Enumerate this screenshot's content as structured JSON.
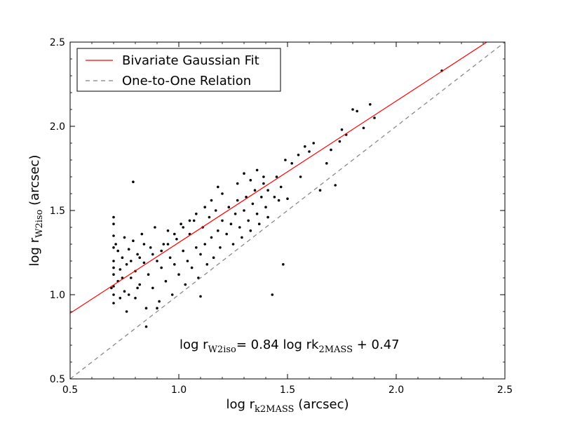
{
  "chart_data": {
    "type": "scatter",
    "xlabel": {
      "prefix": "log r",
      "sub": "k2MASS",
      "suffix": " (arcsec)"
    },
    "ylabel": {
      "prefix": "log r",
      "sub": "W2iso",
      "suffix": " (arcsec)"
    },
    "xlim": [
      0.5,
      2.5
    ],
    "ylim": [
      0.5,
      2.5
    ],
    "xticks": [
      0.5,
      1.0,
      1.5,
      2.0,
      2.5
    ],
    "yticks": [
      0.5,
      1.0,
      1.5,
      2.0,
      2.5
    ],
    "xtick_labels": [
      "0.5",
      "1.0",
      "1.5",
      "2.0",
      "2.5"
    ],
    "ytick_labels": [
      "0.5",
      "1.0",
      "1.5",
      "2.0",
      "2.5"
    ],
    "grid": false,
    "legend_position": "top-left",
    "series": [
      {
        "name": "Bivariate Gaussian Fit",
        "kind": "line",
        "color": "#ff0000",
        "style": "solid",
        "slope": 0.84,
        "intercept": 0.47
      },
      {
        "name": "One-to-One Relation",
        "kind": "line",
        "color": "#808080",
        "style": "dashed",
        "slope": 1.0,
        "intercept": 0.0
      }
    ],
    "scatter": {
      "color": "#000000",
      "points": [
        [
          0.7,
          0.95
        ],
        [
          0.7,
          1.05
        ],
        [
          0.7,
          1.12
        ],
        [
          0.7,
          1.2
        ],
        [
          0.7,
          1.28
        ],
        [
          0.7,
          1.35
        ],
        [
          0.7,
          1.42
        ],
        [
          0.7,
          1.46
        ],
        [
          0.7,
          1.0
        ],
        [
          0.7,
          1.16
        ],
        [
          0.72,
          1.08
        ],
        [
          0.73,
          1.15
        ],
        [
          0.74,
          1.22
        ],
        [
          0.75,
          1.02
        ],
        [
          0.76,
          1.18
        ],
        [
          0.77,
          1.27
        ],
        [
          0.78,
          1.1
        ],
        [
          0.79,
          1.32
        ],
        [
          0.8,
          0.98
        ],
        [
          0.8,
          1.14
        ],
        [
          0.81,
          1.24
        ],
        [
          0.82,
          1.06
        ],
        [
          0.83,
          1.36
        ],
        [
          0.84,
          1.19
        ],
        [
          0.85,
          0.92
        ],
        [
          0.86,
          1.12
        ],
        [
          0.87,
          1.28
        ],
        [
          0.88,
          1.04
        ],
        [
          0.89,
          1.4
        ],
        [
          0.9,
          1.2
        ],
        [
          0.91,
          0.96
        ],
        [
          0.92,
          1.16
        ],
        [
          0.93,
          1.3
        ],
        [
          0.94,
          1.08
        ],
        [
          0.95,
          1.38
        ],
        [
          0.96,
          1.22
        ],
        [
          0.97,
          1.0
        ],
        [
          0.98,
          1.18
        ],
        [
          0.99,
          1.33
        ],
        [
          1.0,
          1.12
        ],
        [
          1.01,
          1.42
        ],
        [
          1.02,
          1.26
        ],
        [
          1.03,
          1.06
        ],
        [
          1.04,
          1.2
        ],
        [
          1.05,
          1.36
        ],
        [
          1.06,
          1.16
        ],
        [
          1.07,
          1.44
        ],
        [
          1.08,
          1.28
        ],
        [
          1.09,
          1.1
        ],
        [
          1.1,
          1.24
        ],
        [
          1.11,
          1.4
        ],
        [
          1.12,
          1.3
        ],
        [
          1.13,
          1.18
        ],
        [
          1.14,
          1.46
        ],
        [
          1.15,
          1.34
        ],
        [
          1.16,
          1.22
        ],
        [
          1.17,
          1.5
        ],
        [
          1.18,
          1.38
        ],
        [
          1.19,
          1.28
        ],
        [
          1.2,
          1.44
        ],
        [
          1.22,
          1.36
        ],
        [
          1.23,
          1.52
        ],
        [
          1.24,
          1.42
        ],
        [
          1.25,
          1.3
        ],
        [
          1.26,
          1.48
        ],
        [
          1.27,
          1.56
        ],
        [
          1.28,
          1.4
        ],
        [
          1.29,
          1.34
        ],
        [
          1.3,
          1.5
        ],
        [
          1.31,
          1.58
        ],
        [
          1.32,
          1.44
        ],
        [
          1.33,
          1.38
        ],
        [
          1.34,
          1.54
        ],
        [
          1.35,
          1.62
        ],
        [
          1.36,
          1.48
        ],
        [
          1.37,
          1.42
        ],
        [
          1.38,
          1.58
        ],
        [
          1.39,
          1.66
        ],
        [
          1.4,
          1.52
        ],
        [
          1.41,
          1.46
        ],
        [
          0.79,
          1.67
        ],
        [
          0.69,
          1.04
        ],
        [
          0.76,
          0.9
        ],
        [
          0.85,
          0.81
        ],
        [
          0.9,
          0.92
        ],
        [
          1.1,
          0.99
        ],
        [
          1.43,
          1.0
        ],
        [
          1.48,
          1.18
        ],
        [
          1.45,
          1.7
        ],
        [
          1.49,
          1.8
        ],
        [
          1.52,
          1.78
        ],
        [
          1.55,
          1.83
        ],
        [
          1.58,
          1.88
        ],
        [
          1.6,
          1.85
        ],
        [
          1.62,
          1.9
        ],
        [
          1.65,
          1.62
        ],
        [
          1.68,
          1.78
        ],
        [
          1.7,
          1.86
        ],
        [
          1.72,
          1.65
        ],
        [
          1.74,
          1.91
        ],
        [
          1.75,
          1.98
        ],
        [
          1.77,
          1.95
        ],
        [
          1.8,
          2.1
        ],
        [
          1.82,
          2.09
        ],
        [
          1.85,
          1.99
        ],
        [
          1.88,
          2.13
        ],
        [
          1.9,
          2.05
        ],
        [
          2.21,
          2.33
        ],
        [
          1.5,
          1.57
        ],
        [
          1.56,
          1.7
        ],
        [
          1.44,
          1.58
        ],
        [
          1.46,
          1.56
        ],
        [
          1.47,
          1.64
        ],
        [
          1.41,
          1.62
        ],
        [
          1.39,
          1.7
        ],
        [
          1.36,
          1.74
        ],
        [
          1.33,
          1.68
        ],
        [
          1.3,
          1.72
        ],
        [
          1.27,
          1.66
        ],
        [
          1.2,
          1.6
        ],
        [
          1.18,
          1.64
        ],
        [
          1.15,
          1.56
        ],
        [
          1.12,
          1.52
        ],
        [
          1.08,
          1.48
        ],
        [
          1.05,
          1.44
        ],
        [
          1.02,
          1.4
        ],
        [
          0.98,
          1.36
        ],
        [
          0.95,
          1.3
        ],
        [
          0.92,
          1.26
        ],
        [
          0.88,
          1.24
        ],
        [
          0.84,
          1.3
        ],
        [
          0.82,
          1.22
        ],
        [
          0.78,
          1.2
        ],
        [
          0.74,
          1.1
        ],
        [
          0.72,
          1.26
        ],
        [
          0.71,
          1.3
        ],
        [
          0.73,
          0.98
        ],
        [
          0.75,
          1.34
        ],
        [
          0.77,
          1.0
        ],
        [
          0.81,
          1.04
        ]
      ]
    }
  },
  "annotation": {
    "prefix": "log r",
    "sub1": "W2iso",
    "mid": "= 0.84 log rk",
    "sub2": "2MASS",
    "suffix": " + 0.47"
  }
}
